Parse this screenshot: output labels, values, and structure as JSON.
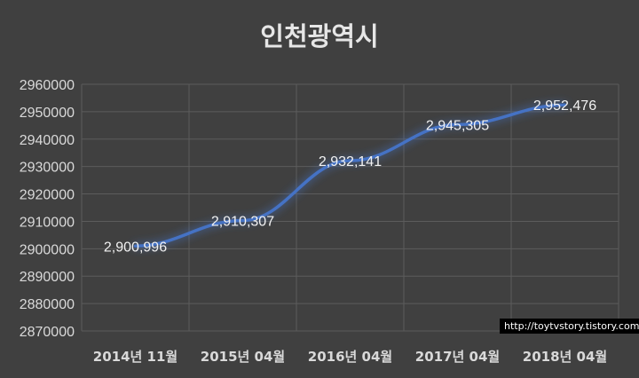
{
  "chart_data": {
    "type": "line",
    "title": "인천광역시",
    "categories": [
      "2014년 11월",
      "2015년 04월",
      "2016년 04월",
      "2017년 04월",
      "2018년 04월"
    ],
    "series": [
      {
        "values": [
          2900996,
          2910307,
          2932141,
          2945305,
          2952476
        ]
      }
    ],
    "data_labels": [
      "2,900,996",
      "2,910,307",
      "2,932,141",
      "2,945,305",
      "2,952,476"
    ],
    "yticks": [
      "2960000",
      "2950000",
      "2940000",
      "2930000",
      "2920000",
      "2910000",
      "2900000",
      "2890000",
      "2880000",
      "2870000"
    ],
    "ylim": [
      2870000,
      2960000
    ],
    "xlabel": "",
    "ylabel": "",
    "grid": true,
    "line_color": "#4472c4"
  },
  "watermark": "http://toytvstory.tistory.com"
}
